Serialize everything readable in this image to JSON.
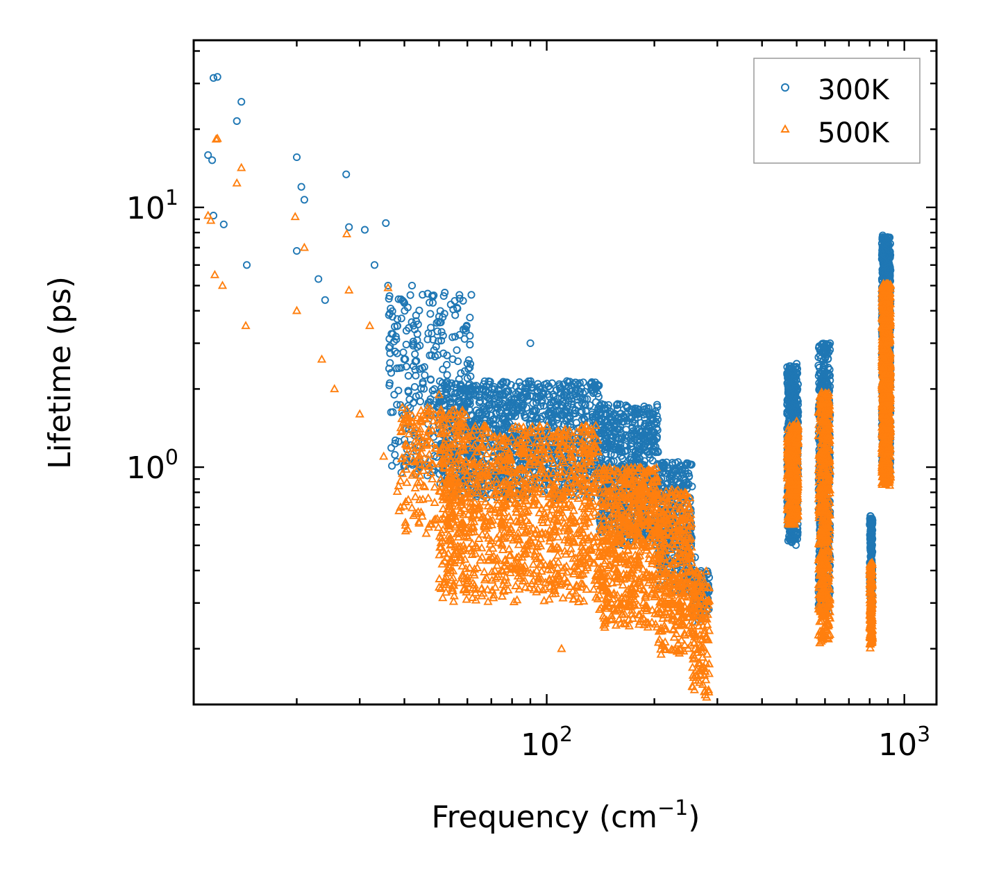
{
  "chart_data": {
    "type": "scatter",
    "title": "",
    "xlabel": "Frequency (cm",
    "xlabel_sup": "−1",
    "xlabel_suffix": ")",
    "ylabel": "Lifetime (ps)",
    "xscale": "log",
    "yscale": "log",
    "xlim": [
      10.3,
      1230
    ],
    "ylim": [
      0.122,
      44
    ],
    "x_ticks": [
      {
        "value": 100,
        "base": "10",
        "exp": "2"
      },
      {
        "value": 1000,
        "base": "10",
        "exp": "3"
      }
    ],
    "y_ticks": [
      {
        "value": 1,
        "base": "10",
        "exp": "0"
      },
      {
        "value": 10,
        "base": "10",
        "exp": "1"
      }
    ],
    "legend": {
      "position": "top-right"
    },
    "series": [
      {
        "name": "300K",
        "color": "#1f77b4",
        "marker": "circle",
        "representative_points": [
          [
            11.7,
            31.5
          ],
          [
            12.0,
            31.8
          ],
          [
            13.6,
            21.5
          ],
          [
            14.0,
            25.5
          ],
          [
            11.3,
            15.9
          ],
          [
            11.6,
            15.2
          ],
          [
            11.7,
            9.3
          ],
          [
            12.5,
            8.6
          ],
          [
            14.5,
            6.0
          ],
          [
            20.0,
            15.6
          ],
          [
            20.6,
            12.0
          ],
          [
            21.0,
            10.7
          ],
          [
            20.0,
            6.8
          ],
          [
            23.0,
            5.3
          ],
          [
            24.0,
            4.4
          ],
          [
            27.5,
            13.4
          ],
          [
            28.0,
            8.4
          ],
          [
            31.0,
            8.2
          ],
          [
            35.5,
            8.7
          ],
          [
            33.0,
            6.0
          ],
          [
            36.0,
            5.0
          ],
          [
            42.0,
            5.0
          ],
          [
            47.0,
            4.3
          ],
          [
            50.0,
            3.8
          ],
          [
            60.0,
            2.2
          ],
          [
            75.0,
            1.9
          ],
          [
            90.0,
            3.0
          ],
          [
            110.0,
            1.6
          ],
          [
            150.0,
            1.6
          ],
          [
            190.0,
            1.6
          ],
          [
            225.0,
            0.85
          ],
          [
            260.0,
            0.45
          ],
          [
            270.0,
            0.26
          ],
          [
            470.0,
            2.3
          ],
          [
            480.0,
            1.1
          ],
          [
            490.0,
            0.78
          ],
          [
            500.0,
            2.5
          ],
          [
            580.0,
            0.35
          ],
          [
            600.0,
            2.3
          ],
          [
            620.0,
            3.0
          ],
          [
            800.0,
            0.6
          ],
          [
            805.0,
            0.33
          ],
          [
            870.0,
            7.8
          ],
          [
            880.0,
            5.0
          ],
          [
            910.0,
            1.3
          ]
        ]
      },
      {
        "name": "500K",
        "color": "#ff7f0e",
        "marker": "triangle",
        "representative_points": [
          [
            11.9,
            18.3
          ],
          [
            12.0,
            18.4
          ],
          [
            14.0,
            14.2
          ],
          [
            13.6,
            12.4
          ],
          [
            11.3,
            9.3
          ],
          [
            11.5,
            8.9
          ],
          [
            11.8,
            5.5
          ],
          [
            12.4,
            5.0
          ],
          [
            14.4,
            3.5
          ],
          [
            19.8,
            9.2
          ],
          [
            21.0,
            7.0
          ],
          [
            20.0,
            4.0
          ],
          [
            23.5,
            2.6
          ],
          [
            25.5,
            2.0
          ],
          [
            27.6,
            7.9
          ],
          [
            28.0,
            4.8
          ],
          [
            32.0,
            3.5
          ],
          [
            36.0,
            4.9
          ],
          [
            30.0,
            1.6
          ],
          [
            35.0,
            1.1
          ],
          [
            39.0,
            0.7
          ],
          [
            50.0,
            1.9
          ],
          [
            55.0,
            0.35
          ],
          [
            75.0,
            1.1
          ],
          [
            75.0,
            0.5
          ],
          [
            90.0,
            1.4
          ],
          [
            110.0,
            0.2
          ],
          [
            150.0,
            0.9
          ],
          [
            170.0,
            0.42
          ],
          [
            190.0,
            0.28
          ],
          [
            230.0,
            0.45
          ],
          [
            260.0,
            0.2
          ],
          [
            275.0,
            0.17
          ],
          [
            280.0,
            0.13
          ],
          [
            480.0,
            1.1
          ],
          [
            500.0,
            1.5
          ],
          [
            490.0,
            0.66
          ],
          [
            590.0,
            0.32
          ],
          [
            600.0,
            1.9
          ],
          [
            620.0,
            0.45
          ],
          [
            800.0,
            0.4
          ],
          [
            805.0,
            0.22
          ],
          [
            870.0,
            5.0
          ],
          [
            885.0,
            1.6
          ],
          [
            910.0,
            0.85
          ]
        ]
      }
    ]
  }
}
